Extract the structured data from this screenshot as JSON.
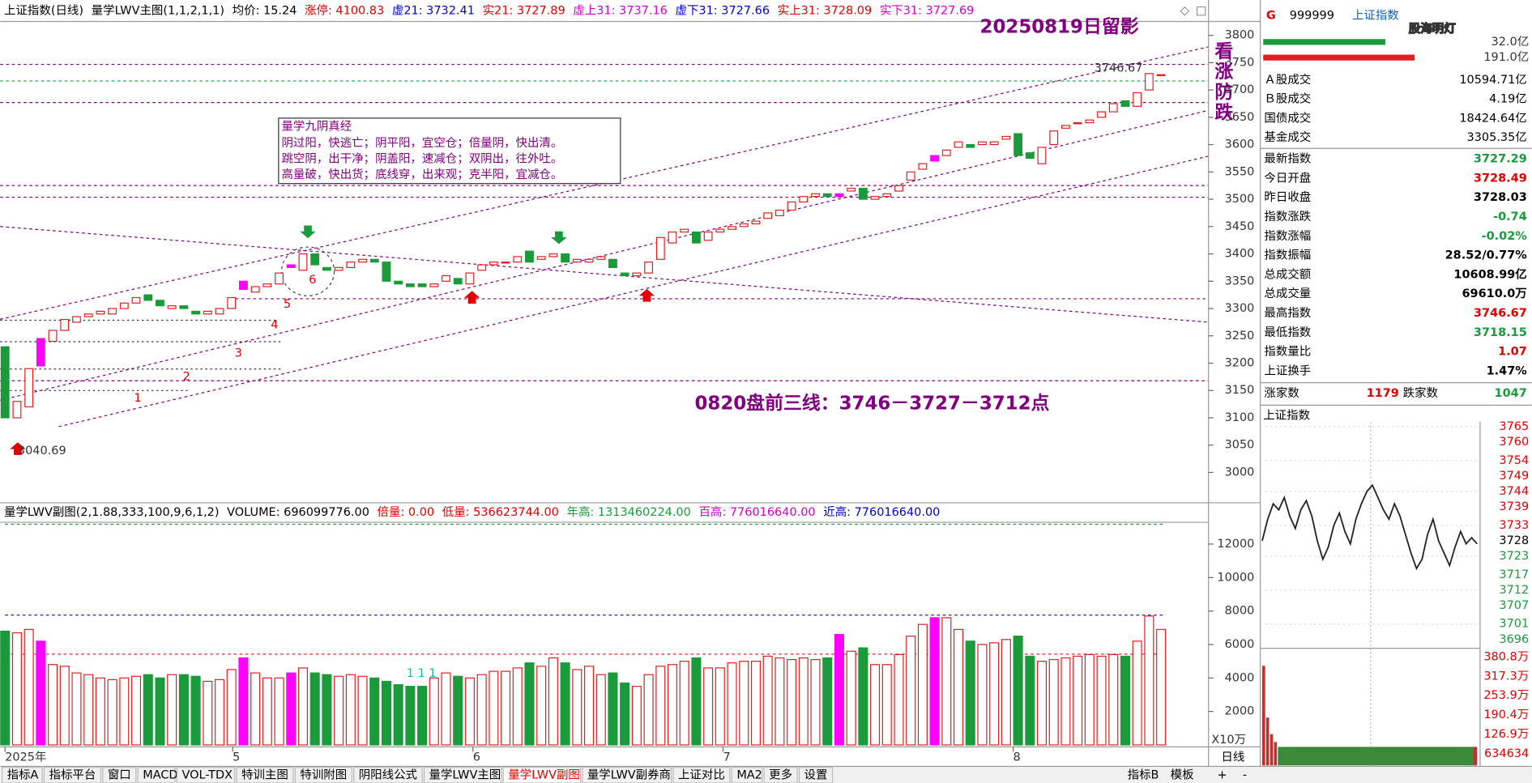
{
  "main_header": {
    "items": [
      {
        "text": "上证指数(日线)",
        "color": "#000"
      },
      {
        "text": "量学LWV主图(1,1,2,1,1)",
        "color": "#000"
      },
      {
        "text": "均价: 15.24",
        "color": "#000"
      },
      {
        "text": "涨停: 4100.83",
        "color": "#e00000"
      },
      {
        "text": "虚21: 3732.41",
        "color": "#0000d0"
      },
      {
        "text": "实21: 3727.89",
        "color": "#e00000"
      },
      {
        "text": "虚上31: 3737.16",
        "color": "#d000d0"
      },
      {
        "text": "虚下31: 3727.66",
        "color": "#0000d0"
      },
      {
        "text": "实上31: 3728.09",
        "color": "#e00000"
      },
      {
        "text": "实下31: 3727.69",
        "color": "#d000d0"
      }
    ]
  },
  "annotations": {
    "title": "20250819日留影",
    "vertical": "看涨防跌",
    "plan": "0820盘前三线：3746－3727－3712点",
    "high": "3746.67",
    "low": "3040.69",
    "marks": [
      "1",
      "2",
      "3",
      "4",
      "5",
      "6"
    ],
    "vol_note": "1 1 1"
  },
  "note_box": {
    "title": "量学九阴真经",
    "lines": [
      "阴过阳，快逃亡；阴平阳，宜空仓；倍量阴，快出清。",
      "跳空阴，出干净；阴盖阳，速减仓；双阴出，往外吐。",
      "高量破，快出货；底线穿，出来观；克半阳，宜减仓。"
    ]
  },
  "price_axis": {
    "ylim": [
      2948,
      3820
    ],
    "ticks": [
      3800,
      3750,
      3700,
      3650,
      3600,
      3550,
      3500,
      3450,
      3400,
      3350,
      3300,
      3250,
      3200,
      3150,
      3100,
      3050,
      3000
    ]
  },
  "candles": {
    "opens": [
      3230,
      3100,
      3120,
      3195,
      3240,
      3260,
      3275,
      3285,
      3290,
      3290,
      3300,
      3310,
      3325,
      3315,
      3300,
      3305,
      3295,
      3290,
      3290,
      3300,
      3335,
      3330,
      3340,
      3345,
      3375,
      3370,
      3400,
      3375,
      3370,
      3375,
      3385,
      3390,
      3385,
      3350,
      3345,
      3345,
      3340,
      3350,
      3355,
      3345,
      3370,
      3380,
      3385,
      3385,
      3405,
      3390,
      3395,
      3400,
      3385,
      3385,
      3390,
      3390,
      3365,
      3360,
      3365,
      3390,
      3420,
      3440,
      3440,
      3425,
      3440,
      3445,
      3450,
      3455,
      3465,
      3470,
      3480,
      3495,
      3505,
      3510,
      3505,
      3515,
      3520,
      3500,
      3505,
      3515,
      3535,
      3555,
      3570,
      3580,
      3595,
      3600,
      3600,
      3600,
      3610,
      3620,
      3585,
      3565,
      3600,
      3630,
      3640,
      3640,
      3650,
      3660,
      3680,
      3670,
      3700,
      3728
    ],
    "closes": [
      3100,
      3130,
      3190,
      3245,
      3260,
      3280,
      3285,
      3290,
      3295,
      3300,
      3310,
      3320,
      3315,
      3305,
      3305,
      3300,
      3290,
      3295,
      3300,
      3320,
      3350,
      3340,
      3345,
      3365,
      3380,
      3400,
      3380,
      3370,
      3375,
      3385,
      3390,
      3385,
      3350,
      3345,
      3340,
      3340,
      3345,
      3360,
      3345,
      3365,
      3380,
      3385,
      3385,
      3395,
      3385,
      3395,
      3400,
      3385,
      3390,
      3390,
      3395,
      3375,
      3360,
      3365,
      3385,
      3430,
      3440,
      3445,
      3420,
      3440,
      3445,
      3450,
      3455,
      3460,
      3475,
      3480,
      3495,
      3505,
      3510,
      3505,
      3510,
      3520,
      3500,
      3505,
      3510,
      3525,
      3550,
      3565,
      3580,
      3590,
      3605,
      3595,
      3605,
      3605,
      3615,
      3580,
      3575,
      3595,
      3625,
      3635,
      3640,
      3645,
      3660,
      3675,
      3670,
      3695,
      3730,
      3728
    ],
    "highlight": [
      3,
      20,
      24,
      70,
      78
    ],
    "up_color": "#e02020",
    "down_color": "#1a9a3a",
    "highlight_color": "#ff00ff"
  },
  "sub_header": {
    "items": [
      {
        "text": "量学LWV副图(2,1.88,333,100,9,6,1,2)",
        "color": "#000"
      },
      {
        "text": "VOLUME: 696099776.00",
        "color": "#000"
      },
      {
        "text": "倍量: 0.00",
        "color": "#e00000"
      },
      {
        "text": "低量: 536623744.00",
        "color": "#e00000"
      },
      {
        "text": "年高: 1313460224.00",
        "color": "#1a9a3a"
      },
      {
        "text": "百高: 776016640.00",
        "color": "#d000d0"
      },
      {
        "text": "近高: 776016640.00",
        "color": "#0000d0"
      }
    ]
  },
  "volume": {
    "ylim": [
      0,
      13300
    ],
    "ticks": [
      12000,
      10000,
      8000,
      6000,
      4000,
      2000
    ],
    "unit": "X10万",
    "values": [
      6800,
      6700,
      6900,
      6200,
      4800,
      4700,
      4300,
      4200,
      4000,
      3900,
      4000,
      4100,
      4200,
      4000,
      4200,
      4200,
      4100,
      3800,
      3900,
      4500,
      5200,
      4300,
      4000,
      4000,
      4300,
      4600,
      4300,
      4200,
      4100,
      4200,
      4100,
      4000,
      3800,
      3600,
      3500,
      3500,
      4000,
      4300,
      4100,
      4000,
      4200,
      4400,
      4400,
      4600,
      4900,
      4700,
      5200,
      4900,
      4500,
      4700,
      4200,
      4300,
      3700,
      3500,
      4200,
      4700,
      4800,
      5000,
      5200,
      4600,
      4600,
      4900,
      5000,
      5000,
      5300,
      5200,
      5100,
      5200,
      5100,
      5200,
      6600,
      5600,
      5800,
      4800,
      4800,
      5400,
      6500,
      7200,
      7600,
      7600,
      6900,
      6200,
      6000,
      6100,
      6300,
      6500,
      5300,
      5000,
      5100,
      5200,
      5300,
      5400,
      5300,
      5400,
      5300,
      6200,
      7700,
      6900
    ]
  },
  "x_labels": [
    "2025年",
    "5",
    "6",
    "7",
    "8"
  ],
  "axis_period": "日线",
  "quote": {
    "prefix": "G",
    "code": "999999",
    "name": "上证指数",
    "watermark": "股海明灯",
    "bar_values": [
      "32.0亿",
      "191.0亿"
    ],
    "turnover": [
      {
        "label": "Ａ股成交",
        "value": "10594.71亿"
      },
      {
        "label": "Ｂ股成交",
        "value": "4.19亿"
      },
      {
        "label": "国债成交",
        "value": "18424.64亿"
      },
      {
        "label": "基金成交",
        "value": "3305.35亿"
      }
    ],
    "stats": [
      {
        "label": "最新指数",
        "value": "3727.29",
        "color": "#1a9a3a"
      },
      {
        "label": "今日开盘",
        "value": "3728.49",
        "color": "#e00000"
      },
      {
        "label": "昨日收盘",
        "value": "3728.03",
        "color": "#000"
      },
      {
        "label": "指数涨跌",
        "value": "-0.74",
        "color": "#1a9a3a"
      },
      {
        "label": "指数涨幅",
        "value": "-0.02%",
        "color": "#1a9a3a"
      },
      {
        "label": "指数振幅",
        "value": "28.52/0.77%",
        "color": "#000"
      },
      {
        "label": "总成交额",
        "value": "10608.99亿",
        "color": "#000"
      },
      {
        "label": "总成交量",
        "value": "69610.0万",
        "color": "#000"
      },
      {
        "label": "最高指数",
        "value": "3746.67",
        "color": "#e00000"
      },
      {
        "label": "最低指数",
        "value": "3718.15",
        "color": "#1a9a3a"
      },
      {
        "label": "指数量比",
        "value": "1.07",
        "color": "#e00000"
      },
      {
        "label": "上证换手",
        "value": "1.47%",
        "color": "#000"
      }
    ],
    "breadth": {
      "up_label": "涨家数",
      "up": "1179",
      "down_label": "跌家数",
      "down": "1047"
    }
  },
  "mini": {
    "title": "上证指数",
    "price_ticks": [
      3765,
      3760,
      3754,
      3749,
      3744,
      3739,
      3733,
      3728,
      3723,
      3717,
      3712,
      3707,
      3701,
      3696
    ],
    "volume_ticks": [
      "380.8万",
      "317.3万",
      "253.9万",
      "190.4万",
      "126.9万",
      "634634"
    ],
    "values": [
      3728,
      3735,
      3740,
      3738,
      3742,
      3736,
      3732,
      3738,
      3741,
      3736,
      3728,
      3722,
      3726,
      3733,
      3737,
      3731,
      3727,
      3735,
      3740,
      3744,
      3746,
      3742,
      3738,
      3735,
      3740,
      3736,
      3730,
      3724,
      3719,
      3722,
      3730,
      3735,
      3728,
      3724,
      3720,
      3726,
      3731,
      3727,
      3729,
      3727
    ]
  },
  "tabs": [
    {
      "text": "指标A"
    },
    {
      "text": "指标平台"
    },
    {
      "text": "窗口"
    },
    {
      "text": "MACD"
    },
    {
      "text": "VOL-TDX"
    },
    {
      "text": "特训主图"
    },
    {
      "text": "特训附图"
    },
    {
      "text": "阴阳线公式"
    },
    {
      "text": "量学LWV主图"
    },
    {
      "text": "量学LWV副图",
      "active": true
    },
    {
      "text": "量学LWV副券商"
    },
    {
      "text": "上证对比"
    },
    {
      "text": "MA2"
    },
    {
      "text": "更多"
    },
    {
      "text": "设置"
    }
  ],
  "right_tabs": [
    "指标B",
    "模板",
    "+",
    "-"
  ]
}
